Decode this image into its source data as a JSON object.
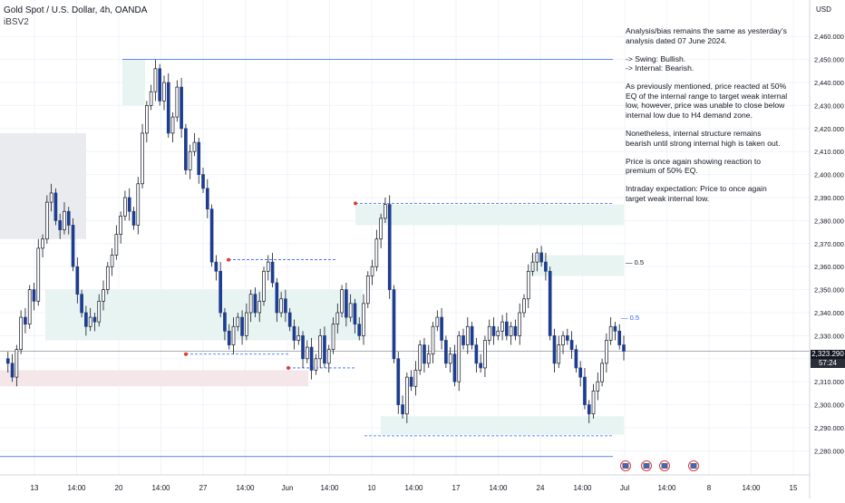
{
  "header": {
    "symbol_line": "Gold Spot / U.S. Dollar, 4h, OANDA",
    "indicator": "iBSV2"
  },
  "price_axis": {
    "currency": "USD",
    "ticks": [
      "2,460.000",
      "2,450.000",
      "2,440.000",
      "2,430.000",
      "2,420.000",
      "2,410.000",
      "2,400.000",
      "2,390.000",
      "2,380.000",
      "2,370.000",
      "2,360.000",
      "2,350.000",
      "2,340.000",
      "2,330.000",
      "2,320.000",
      "2,310.000",
      "2,300.000",
      "2,290.000",
      "2,280.000"
    ],
    "last_price": "2,323.290",
    "countdown": "57:24"
  },
  "time_axis": {
    "ticks": [
      "13",
      "14:00",
      "20",
      "14:00",
      "27",
      "14:00",
      "Jun",
      "14:00",
      "10",
      "14:00",
      "17",
      "14:00",
      "24",
      "14:00",
      "Jul",
      "14:00",
      "8",
      "14:00",
      "15"
    ]
  },
  "analysis": [
    "Analysis/bias remains the same as yesterday's analysis dated 07 June 2024.",
    "-> Swing:  Bullish.\n-> Internal:  Bearish.",
    "As previously mentioned, price reacted at 50% EQ of the internal range to target weak internal low, however, price was unable to close below internal low due to H4 demand zone.",
    "Nonetheless, internal structure remains bearish until strong internal high is taken out.",
    "Price is once again showing reaction to premium of 50% EQ.",
    "Intraday expectation: Price to once again target weak internal low."
  ],
  "annotations": {
    "eq_upper": "0.5",
    "eq_lower": "0.5"
  },
  "colors": {
    "up_candle": "#ffffff",
    "up_border": "#131722",
    "down_candle": "#1e3d8f",
    "supply_zone": "#e8f4f2",
    "grey_zone": "#eaebee",
    "pink_zone": "#f5e6ea",
    "level_line": "#2962ff",
    "marker": "#e53935"
  },
  "chart_data": {
    "type": "candlestick",
    "symbol": "Gold Spot / U.S. Dollar, 4h, OANDA",
    "ylim": [
      2277,
      2466
    ],
    "y_ticks": [
      2460,
      2450,
      2440,
      2430,
      2420,
      2410,
      2400,
      2390,
      2380,
      2370,
      2360,
      2350,
      2340,
      2330,
      2320,
      2310,
      2300,
      2290,
      2280
    ],
    "x_ticks": [
      "13",
      "14:00",
      "20",
      "14:00",
      "27",
      "14:00",
      "Jun",
      "14:00",
      "10",
      "14:00",
      "17",
      "14:00",
      "24",
      "14:00",
      "Jul",
      "14:00",
      "8",
      "14:00",
      "15"
    ],
    "last_price": 2323.29,
    "key_levels": {
      "swing_high": 2450.0,
      "swing_low": 2277.5,
      "strong_internal_high": 2387.5,
      "weak_internal_low": 2286.5,
      "eq_50_upper": 2362.0,
      "eq_50_lower": 2338.0
    },
    "zones": [
      {
        "kind": "supply",
        "from": 2378,
        "to": 2387
      },
      {
        "kind": "supply",
        "from": 2356,
        "to": 2365
      },
      {
        "kind": "demand",
        "from": 2287,
        "to": 2295
      }
    ],
    "path": [
      2320,
      2318,
      2312,
      2324,
      2338,
      2335,
      2350,
      2345,
      2368,
      2372,
      2388,
      2392,
      2380,
      2376,
      2384,
      2378,
      2360,
      2348,
      2340,
      2334,
      2338,
      2336,
      2345,
      2350,
      2360,
      2365,
      2374,
      2382,
      2390,
      2384,
      2378,
      2396,
      2418,
      2430,
      2436,
      2446,
      2432,
      2440,
      2418,
      2425,
      2438,
      2420,
      2402,
      2410,
      2414,
      2400,
      2394,
      2385,
      2362,
      2358,
      2340,
      2332,
      2326,
      2334,
      2338,
      2330,
      2340,
      2348,
      2340,
      2345,
      2358,
      2362,
      2353,
      2340,
      2346,
      2340,
      2334,
      2328,
      2330,
      2320,
      2325,
      2315,
      2320,
      2330,
      2318,
      2324,
      2335,
      2340,
      2350,
      2338,
      2344,
      2335,
      2330,
      2344,
      2356,
      2360,
      2372,
      2381,
      2387,
      2350,
      2320,
      2300,
      2296,
      2312,
      2308,
      2315,
      2326,
      2318,
      2322,
      2334,
      2338,
      2328,
      2318,
      2322,
      2310,
      2330,
      2326,
      2334,
      2326,
      2318,
      2316,
      2328,
      2334,
      2330,
      2332,
      2336,
      2330,
      2334,
      2330,
      2340,
      2346,
      2358,
      2362,
      2366,
      2362,
      2358,
      2330,
      2318,
      2326,
      2330,
      2328,
      2324,
      2316,
      2312,
      2300,
      2296,
      2306,
      2310,
      2318,
      2328,
      2334,
      2332,
      2326,
      2323.29
    ]
  }
}
